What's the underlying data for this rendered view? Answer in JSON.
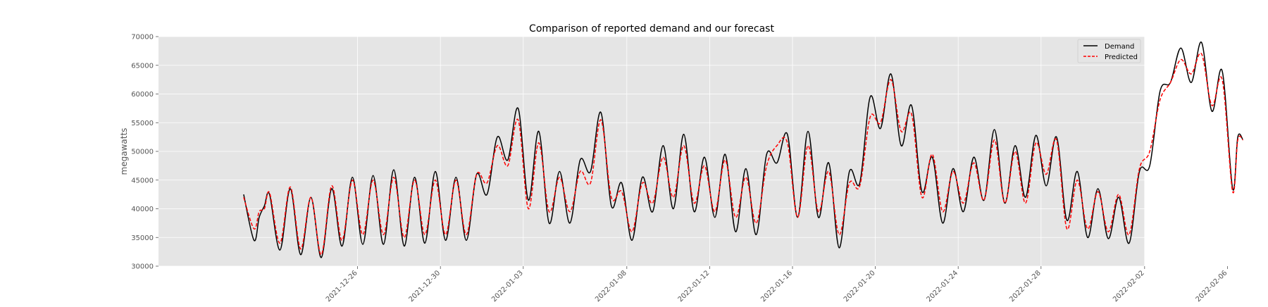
{
  "chart_data": {
    "type": "line",
    "title": "Comparison of reported demand and our forecast",
    "xlabel": "",
    "ylabel": "megawatts",
    "ylim": [
      30000,
      70000
    ],
    "yticks": [
      30000,
      35000,
      40000,
      45000,
      50000,
      55000,
      60000,
      65000,
      70000
    ],
    "xticks": [
      "2021-12-26",
      "2021-12-30",
      "2022-01-03",
      "2022-01-08",
      "2022-01-12",
      "2022-01-16",
      "2022-01-20",
      "2022-01-24",
      "2022-01-28",
      "2022-02-02",
      "2022-02-06"
    ],
    "grid": true,
    "legend_position": "top-right",
    "series": [
      {
        "name": "Demand",
        "color": "#000000",
        "style": "solid",
        "points": [
          [
            "2021-12-20 12:00",
            42500
          ],
          [
            "2021-12-21 00:00",
            34500
          ],
          [
            "2021-12-21 06:00",
            38500
          ],
          [
            "2021-12-21 12:00",
            40500
          ],
          [
            "2021-12-21 18:00",
            42500
          ],
          [
            "2021-12-22 06:00",
            32800
          ],
          [
            "2021-12-22 18:00",
            43500
          ],
          [
            "2021-12-23 06:00",
            32000
          ],
          [
            "2021-12-23 18:00",
            42000
          ],
          [
            "2021-12-24 06:00",
            31500
          ],
          [
            "2021-12-24 18:00",
            43500
          ],
          [
            "2021-12-25 06:00",
            33500
          ],
          [
            "2021-12-25 18:00",
            45500
          ],
          [
            "2021-12-26 06:00",
            33800
          ],
          [
            "2021-12-26 18:00",
            45800
          ],
          [
            "2021-12-27 06:00",
            33800
          ],
          [
            "2021-12-27 18:00",
            46800
          ],
          [
            "2021-12-28 06:00",
            33500
          ],
          [
            "2021-12-28 18:00",
            45500
          ],
          [
            "2021-12-29 06:00",
            34000
          ],
          [
            "2021-12-29 18:00",
            46500
          ],
          [
            "2021-12-30 06:00",
            34500
          ],
          [
            "2021-12-30 18:00",
            45500
          ],
          [
            "2021-12-31 06:00",
            34500
          ],
          [
            "2021-12-31 18:00",
            46000
          ],
          [
            "2022-01-01 06:00",
            42500
          ],
          [
            "2022-01-01 18:00",
            52500
          ],
          [
            "2022-01-02 06:00",
            48500
          ],
          [
            "2022-01-02 18:00",
            57500
          ],
          [
            "2022-01-03 06:00",
            41500
          ],
          [
            "2022-01-03 18:00",
            53500
          ],
          [
            "2022-01-04 06:00",
            37500
          ],
          [
            "2022-01-04 18:00",
            46500
          ],
          [
            "2022-01-05 06:00",
            37500
          ],
          [
            "2022-01-05 18:00",
            48500
          ],
          [
            "2022-01-06 06:00",
            46500
          ],
          [
            "2022-01-06 18:00",
            56800
          ],
          [
            "2022-01-07 06:00",
            40500
          ],
          [
            "2022-01-07 18:00",
            44500
          ],
          [
            "2022-01-08 06:00",
            34500
          ],
          [
            "2022-01-08 18:00",
            45500
          ],
          [
            "2022-01-09 06:00",
            39500
          ],
          [
            "2022-01-09 18:00",
            51000
          ],
          [
            "2022-01-10 06:00",
            40000
          ],
          [
            "2022-01-10 18:00",
            53000
          ],
          [
            "2022-01-11 06:00",
            39500
          ],
          [
            "2022-01-11 18:00",
            49000
          ],
          [
            "2022-01-12 06:00",
            38500
          ],
          [
            "2022-01-12 18:00",
            49500
          ],
          [
            "2022-01-13 06:00",
            36000
          ],
          [
            "2022-01-13 18:00",
            47000
          ],
          [
            "2022-01-14 06:00",
            35500
          ],
          [
            "2022-01-14 18:00",
            49500
          ],
          [
            "2022-01-15 06:00",
            48000
          ],
          [
            "2022-01-15 18:00",
            53000
          ],
          [
            "2022-01-16 06:00",
            38500
          ],
          [
            "2022-01-16 18:00",
            53500
          ],
          [
            "2022-01-17 06:00",
            38500
          ],
          [
            "2022-01-17 18:00",
            48000
          ],
          [
            "2022-01-18 06:00",
            33200
          ],
          [
            "2022-01-18 18:00",
            46500
          ],
          [
            "2022-01-19 06:00",
            44500
          ],
          [
            "2022-01-19 18:00",
            59500
          ],
          [
            "2022-01-20 06:00",
            54000
          ],
          [
            "2022-01-20 18:00",
            63500
          ],
          [
            "2022-01-21 06:00",
            51000
          ],
          [
            "2022-01-21 18:00",
            58000
          ],
          [
            "2022-01-22 06:00",
            43000
          ],
          [
            "2022-01-22 18:00",
            49000
          ],
          [
            "2022-01-23 06:00",
            37500
          ],
          [
            "2022-01-23 18:00",
            47000
          ],
          [
            "2022-01-24 06:00",
            39500
          ],
          [
            "2022-01-24 18:00",
            49000
          ],
          [
            "2022-01-25 06:00",
            41500
          ],
          [
            "2022-01-25 18:00",
            53800
          ],
          [
            "2022-01-26 06:00",
            41000
          ],
          [
            "2022-01-26 18:00",
            51000
          ],
          [
            "2022-01-27 06:00",
            42000
          ],
          [
            "2022-01-27 18:00",
            52800
          ],
          [
            "2022-01-28 06:00",
            44000
          ],
          [
            "2022-01-28 18:00",
            52500
          ],
          [
            "2022-01-29 06:00",
            38000
          ],
          [
            "2022-01-29 18:00",
            46500
          ],
          [
            "2022-01-30 06:00",
            35000
          ],
          [
            "2022-01-30 18:00",
            43500
          ],
          [
            "2022-01-31 06:00",
            34800
          ],
          [
            "2022-01-31 18:00",
            42000
          ],
          [
            "2022-02-01 06:00",
            34000
          ],
          [
            "2022-02-01 18:00",
            46500
          ],
          [
            "2022-02-02 06:00",
            47500
          ],
          [
            "2022-02-02 18:00",
            60500
          ],
          [
            "2022-02-03 06:00",
            62000
          ],
          [
            "2022-02-03 18:00",
            68000
          ],
          [
            "2022-02-04 06:00",
            62000
          ],
          [
            "2022-02-04 18:00",
            69000
          ],
          [
            "2022-02-05 06:00",
            57000
          ],
          [
            "2022-02-05 18:00",
            64000
          ],
          [
            "2022-02-06 06:00",
            43500
          ],
          [
            "2022-02-06 12:00",
            52500
          ],
          [
            "2022-02-06 18:00",
            52000
          ]
        ]
      },
      {
        "name": "Predicted",
        "color": "#ff0000",
        "style": "dashed",
        "points": [
          [
            "2021-12-20 12:00",
            42000
          ],
          [
            "2021-12-21 00:00",
            36500
          ],
          [
            "2021-12-21 06:00",
            39500
          ],
          [
            "2021-12-21 12:00",
            40000
          ],
          [
            "2021-12-21 18:00",
            42800
          ],
          [
            "2021-12-22 06:00",
            34000
          ],
          [
            "2021-12-22 18:00",
            43800
          ],
          [
            "2021-12-23 06:00",
            33000
          ],
          [
            "2021-12-23 18:00",
            42000
          ],
          [
            "2021-12-24 06:00",
            32000
          ],
          [
            "2021-12-24 18:00",
            44000
          ],
          [
            "2021-12-25 06:00",
            34500
          ],
          [
            "2021-12-25 18:00",
            45000
          ],
          [
            "2021-12-26 06:00",
            35500
          ],
          [
            "2021-12-26 18:00",
            45000
          ],
          [
            "2021-12-27 06:00",
            35500
          ],
          [
            "2021-12-27 18:00",
            45500
          ],
          [
            "2021-12-28 06:00",
            35000
          ],
          [
            "2021-12-28 18:00",
            45000
          ],
          [
            "2021-12-29 06:00",
            35500
          ],
          [
            "2021-12-29 18:00",
            45000
          ],
          [
            "2021-12-30 06:00",
            35500
          ],
          [
            "2021-12-30 18:00",
            45000
          ],
          [
            "2021-12-31 06:00",
            35500
          ],
          [
            "2021-12-31 18:00",
            46000
          ],
          [
            "2022-01-01 06:00",
            44500
          ],
          [
            "2022-01-01 18:00",
            51000
          ],
          [
            "2022-01-02 06:00",
            47500
          ],
          [
            "2022-01-02 18:00",
            55500
          ],
          [
            "2022-01-03 06:00",
            40000
          ],
          [
            "2022-01-03 18:00",
            51500
          ],
          [
            "2022-01-04 06:00",
            39500
          ],
          [
            "2022-01-04 18:00",
            45500
          ],
          [
            "2022-01-05 06:00",
            39500
          ],
          [
            "2022-01-05 18:00",
            46500
          ],
          [
            "2022-01-06 06:00",
            44500
          ],
          [
            "2022-01-06 18:00",
            55500
          ],
          [
            "2022-01-07 06:00",
            42000
          ],
          [
            "2022-01-07 18:00",
            43000
          ],
          [
            "2022-01-08 06:00",
            36000
          ],
          [
            "2022-01-08 18:00",
            44500
          ],
          [
            "2022-01-09 06:00",
            41000
          ],
          [
            "2022-01-09 18:00",
            49000
          ],
          [
            "2022-01-10 06:00",
            42000
          ],
          [
            "2022-01-10 18:00",
            51000
          ],
          [
            "2022-01-11 06:00",
            41000
          ],
          [
            "2022-01-11 18:00",
            47500
          ],
          [
            "2022-01-12 06:00",
            39500
          ],
          [
            "2022-01-12 18:00",
            48500
          ],
          [
            "2022-01-13 06:00",
            38500
          ],
          [
            "2022-01-13 18:00",
            45500
          ],
          [
            "2022-01-14 06:00",
            37500
          ],
          [
            "2022-01-14 18:00",
            47500
          ],
          [
            "2022-01-15 06:00",
            51000
          ],
          [
            "2022-01-15 18:00",
            51500
          ],
          [
            "2022-01-16 06:00",
            38500
          ],
          [
            "2022-01-16 18:00",
            51000
          ],
          [
            "2022-01-17 06:00",
            39500
          ],
          [
            "2022-01-17 18:00",
            46500
          ],
          [
            "2022-01-18 06:00",
            35500
          ],
          [
            "2022-01-18 18:00",
            44500
          ],
          [
            "2022-01-19 06:00",
            44000
          ],
          [
            "2022-01-19 18:00",
            56000
          ],
          [
            "2022-01-20 06:00",
            55000
          ],
          [
            "2022-01-20 18:00",
            62500
          ],
          [
            "2022-01-21 06:00",
            53500
          ],
          [
            "2022-01-21 18:00",
            56500
          ],
          [
            "2022-01-22 06:00",
            42000
          ],
          [
            "2022-01-22 18:00",
            49500
          ],
          [
            "2022-01-23 06:00",
            39500
          ],
          [
            "2022-01-23 18:00",
            46500
          ],
          [
            "2022-01-24 06:00",
            41000
          ],
          [
            "2022-01-24 18:00",
            48000
          ],
          [
            "2022-01-25 06:00",
            41500
          ],
          [
            "2022-01-25 18:00",
            52000
          ],
          [
            "2022-01-26 06:00",
            41000
          ],
          [
            "2022-01-26 18:00",
            50000
          ],
          [
            "2022-01-27 06:00",
            41000
          ],
          [
            "2022-01-27 18:00",
            51500
          ],
          [
            "2022-01-28 06:00",
            46000
          ],
          [
            "2022-01-28 18:00",
            52000
          ],
          [
            "2022-01-29 06:00",
            36500
          ],
          [
            "2022-01-29 18:00",
            45000
          ],
          [
            "2022-01-30 06:00",
            36500
          ],
          [
            "2022-01-30 18:00",
            43000
          ],
          [
            "2022-01-31 06:00",
            36000
          ],
          [
            "2022-01-31 18:00",
            42500
          ],
          [
            "2022-02-01 06:00",
            35500
          ],
          [
            "2022-02-01 18:00",
            47000
          ],
          [
            "2022-02-02 06:00",
            50000
          ],
          [
            "2022-02-02 18:00",
            59000
          ],
          [
            "2022-02-03 06:00",
            62000
          ],
          [
            "2022-02-03 18:00",
            66000
          ],
          [
            "2022-02-04 06:00",
            63500
          ],
          [
            "2022-02-04 18:00",
            67000
          ],
          [
            "2022-02-05 06:00",
            58000
          ],
          [
            "2022-02-05 18:00",
            62500
          ],
          [
            "2022-02-06 06:00",
            43000
          ],
          [
            "2022-02-06 12:00",
            52000
          ],
          [
            "2022-02-06 18:00",
            52000
          ]
        ]
      }
    ]
  }
}
